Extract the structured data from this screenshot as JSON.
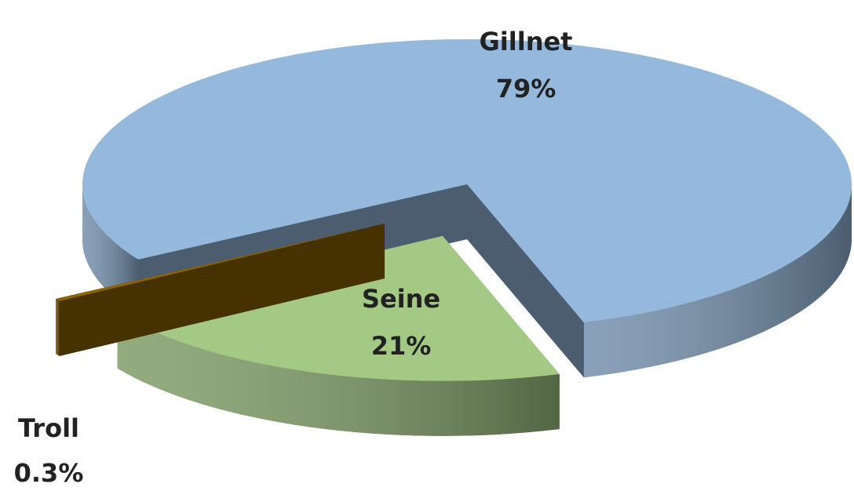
{
  "chart_data": {
    "type": "pie",
    "categories": [
      "Gillnet",
      "Seine",
      "Troll"
    ],
    "values": [
      79,
      21,
      0.3
    ],
    "value_labels": [
      "79%",
      "21%",
      "0.3%"
    ],
    "colors": [
      "#95b9dd",
      "#a3c985",
      "#8b6400"
    ]
  }
}
